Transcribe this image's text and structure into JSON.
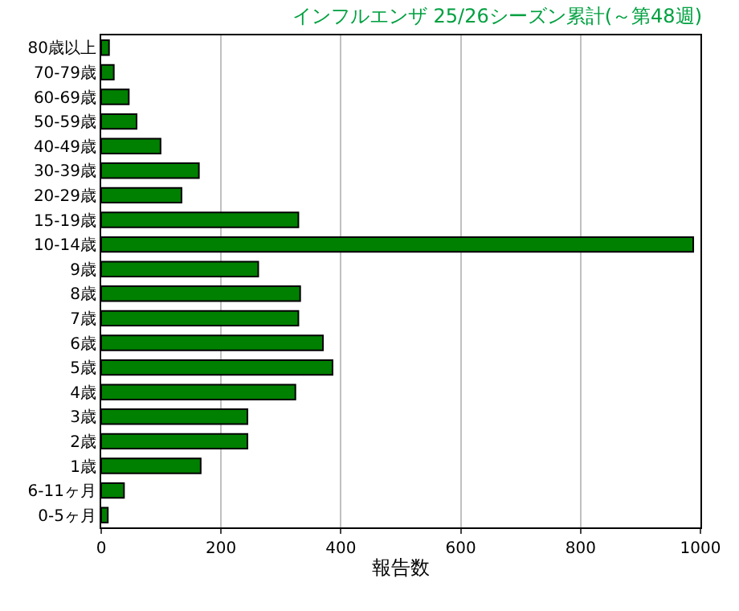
{
  "chart_data": {
    "type": "bar",
    "orientation": "horizontal",
    "title": "インフルエンザ 25/26シーズン累計(～第48週)",
    "xlabel": "報告数",
    "categories": [
      "80歳以上",
      "70-79歳",
      "60-69歳",
      "50-59歳",
      "40-49歳",
      "30-39歳",
      "20-29歳",
      "15-19歳",
      "10-14歳",
      "9歳",
      "8歳",
      "7歳",
      "6歳",
      "5歳",
      "4歳",
      "3歳",
      "2歳",
      "1歳",
      "6-11ヶ月",
      "0-5ヶ月"
    ],
    "values": [
      13,
      21,
      46,
      59,
      99,
      163,
      134,
      329,
      988,
      262,
      332,
      329,
      370,
      386,
      324,
      244,
      244,
      166,
      38,
      11
    ],
    "color": "#008000",
    "xlim": [
      0,
      1000
    ],
    "xticks": [
      0,
      200,
      400,
      600,
      800,
      1000
    ],
    "grid": "x"
  }
}
